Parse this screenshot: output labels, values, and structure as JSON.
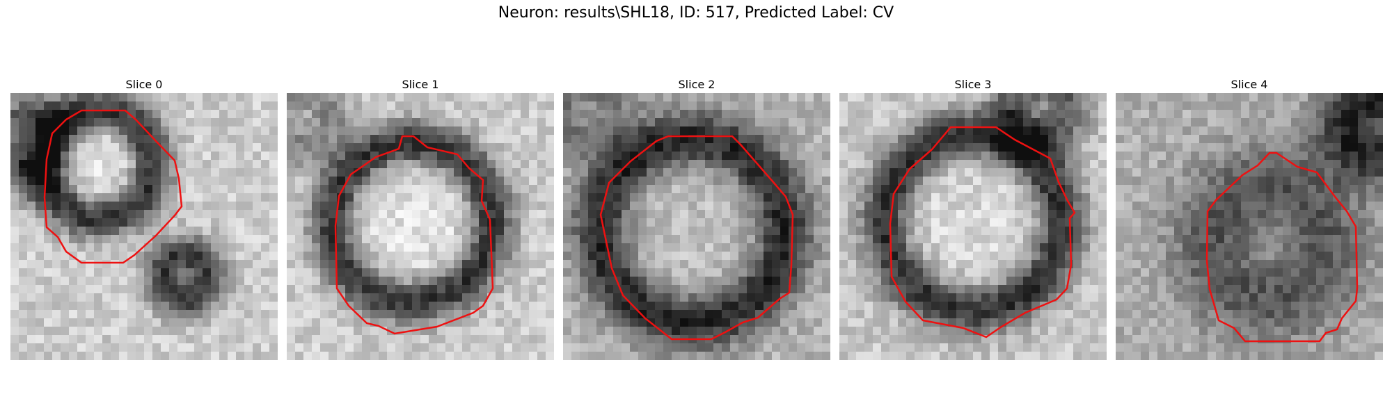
{
  "figure": {
    "suptitle": "Neuron: results\\SHL18, ID: 517, Predicted Label: CV"
  },
  "panels": [
    {
      "title": "Slice 0"
    },
    {
      "title": "Slice 1"
    },
    {
      "title": "Slice 2"
    },
    {
      "title": "Slice 3"
    },
    {
      "title": "Slice 4"
    }
  ],
  "colors": {
    "contour": "#ee1111",
    "colormap": "grayscale"
  }
}
